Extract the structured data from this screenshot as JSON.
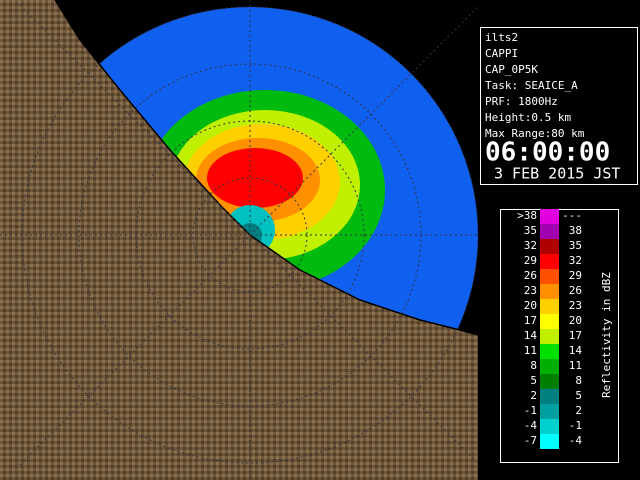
{
  "info": {
    "lines": [
      "ilts2",
      "CAPPI",
      "CAP_0P5K",
      "Task: SEAICE_A",
      "PRF: 1800Hz",
      "Height:0.5 km",
      "Max Range:80 km"
    ],
    "time": "06:00:00",
    "date": "3 FEB 2015 JST"
  },
  "legend": {
    "title": "Reflectivity in dBZ",
    "rows": [
      {
        "low": ">38",
        "high": "---",
        "color": "#e000e0"
      },
      {
        "low": "35",
        "high": "38",
        "color": "#a000b0"
      },
      {
        "low": "32",
        "high": "35",
        "color": "#b00000"
      },
      {
        "low": "29",
        "high": "32",
        "color": "#ff0000"
      },
      {
        "low": "26",
        "high": "29",
        "color": "#ff5000"
      },
      {
        "low": "23",
        "high": "26",
        "color": "#ff9000"
      },
      {
        "low": "20",
        "high": "23",
        "color": "#ffd000"
      },
      {
        "low": "17",
        "high": "20",
        "color": "#ffff00"
      },
      {
        "low": "14",
        "high": "17",
        "color": "#c0f000"
      },
      {
        "low": "11",
        "high": "14",
        "color": "#00e000"
      },
      {
        "low": "8",
        "high": "11",
        "color": "#00b000"
      },
      {
        "low": "5",
        "high": "8",
        "color": "#008000"
      },
      {
        "low": "2",
        "high": "5",
        "color": "#008080"
      },
      {
        "low": "-1",
        "high": "2",
        "color": "#00a0a0"
      },
      {
        "low": "-4",
        "high": "-1",
        "color": "#00d0d0"
      },
      {
        "low": "-7",
        "high": "-4",
        "color": "#00ffff"
      }
    ]
  }
}
